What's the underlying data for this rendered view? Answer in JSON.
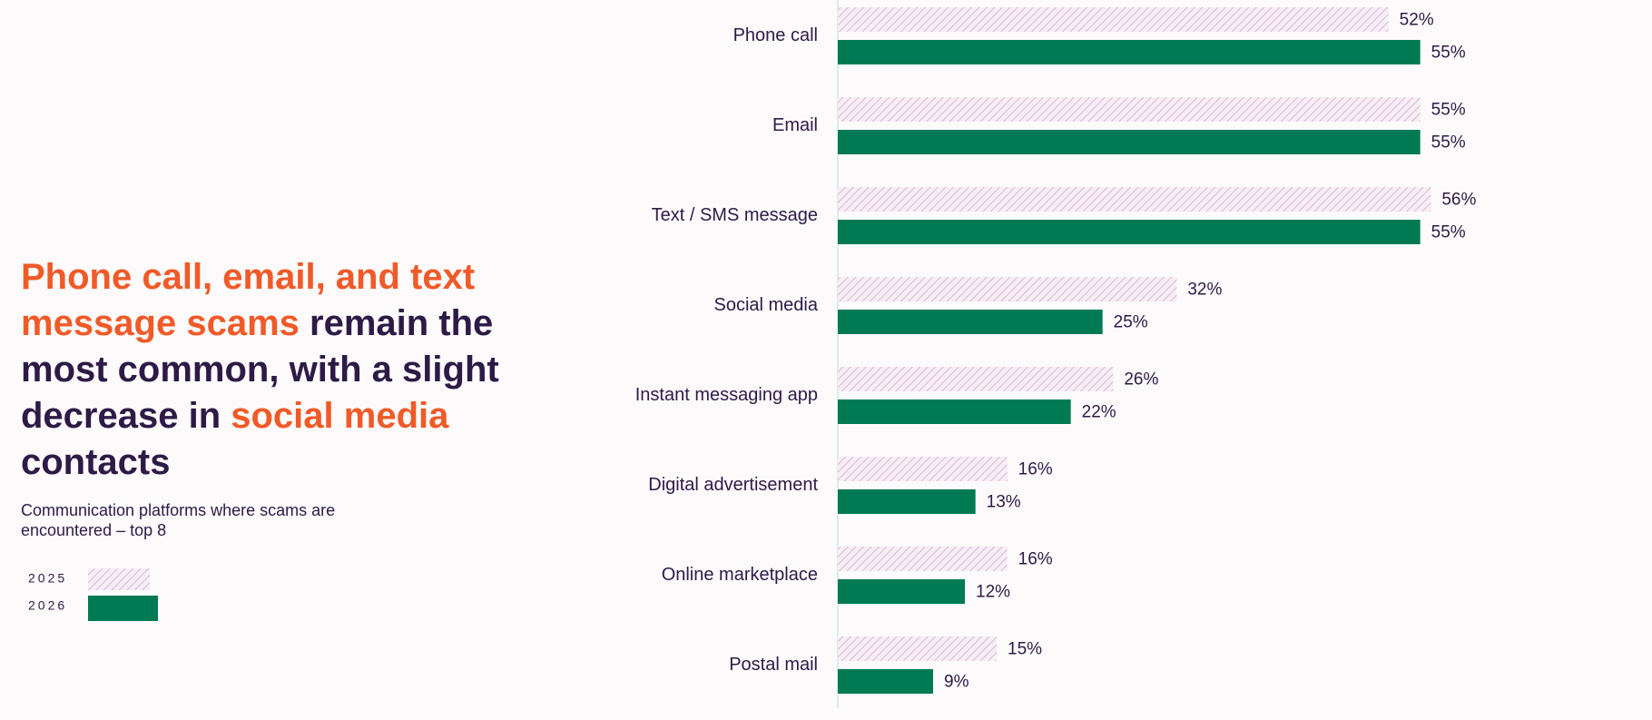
{
  "chart_data": {
    "type": "bar",
    "orientation": "horizontal",
    "title": [
      {
        "text": "Phone call, email, and text message scams",
        "color": "#f05a28"
      },
      {
        "text": " remain the most common, with a slight decrease in ",
        "color": "#2e1a47"
      },
      {
        "text": "social media",
        "color": "#f05a28"
      },
      {
        "text": " contacts",
        "color": "#2e1a47"
      }
    ],
    "subtitle": "Communication platforms where scams are encountered – top 8",
    "categories": [
      "Phone call",
      "Email",
      "Text / SMS message",
      "Social media",
      "Instant messaging app",
      "Digital advertisement",
      "Online marketplace",
      "Postal mail"
    ],
    "series": [
      {
        "name": "2025",
        "color": "#e6c9e3",
        "pattern": "hatch",
        "values": [
          52,
          55,
          56,
          32,
          26,
          16,
          16,
          15
        ],
        "value_labels": [
          "52%",
          "55%",
          "56%",
          "32%",
          "26%",
          "16%",
          "16%",
          "15%"
        ]
      },
      {
        "name": "2026",
        "color": "#007a53",
        "pattern": "solid",
        "values": [
          55,
          55,
          55,
          25,
          22,
          13,
          12,
          9
        ],
        "value_labels": [
          "55%",
          "55%",
          "55%",
          "25%",
          "22%",
          "13%",
          "12%",
          "9%"
        ]
      }
    ],
    "xlim": [
      0,
      60
    ]
  }
}
